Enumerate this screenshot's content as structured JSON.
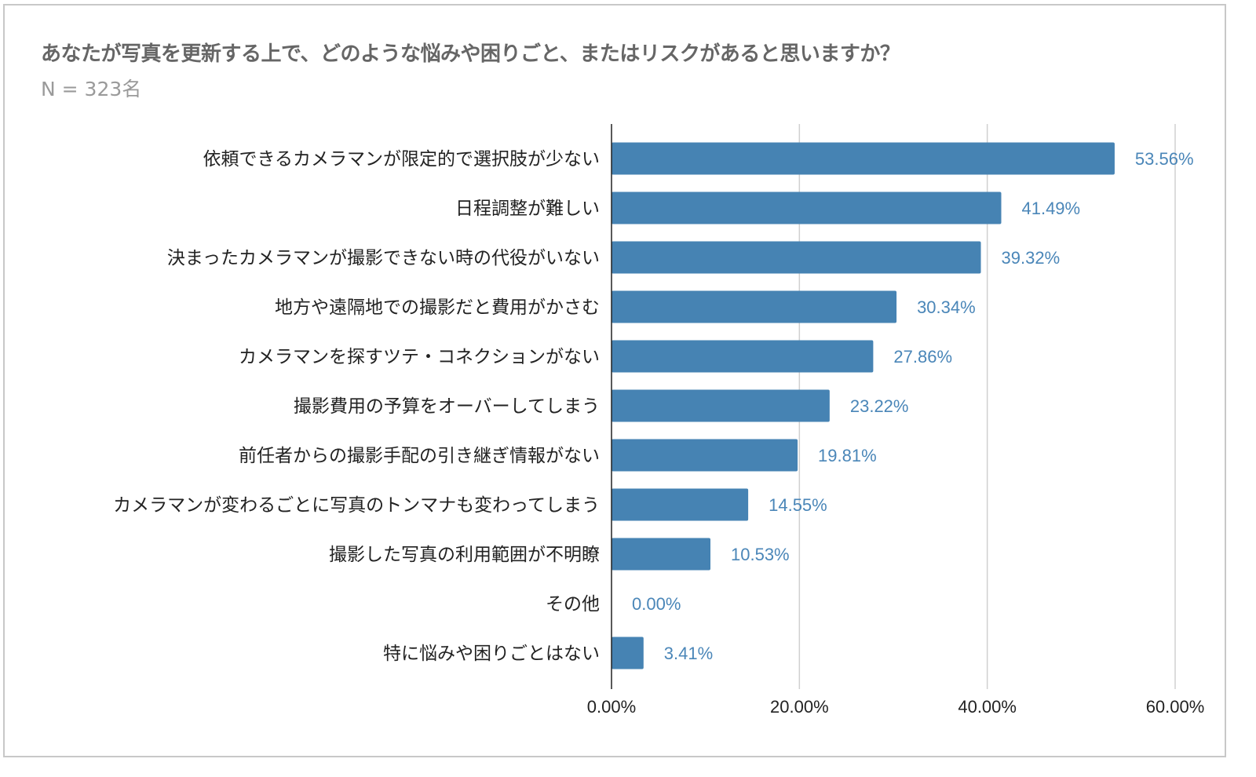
{
  "chart_data": {
    "type": "bar",
    "orientation": "horizontal",
    "title": "あなたが写真を更新する上で、どのような悩みや困りごと、またはリスクがあると思いますか？",
    "subtitle": "N = 323名",
    "categories": [
      "依頼できるカメラマンが限定的で選択肢が少ない",
      "日程調整が難しい",
      "決まったカメラマンが撮影できない時の代役がいない",
      "地方や遠隔地での撮影だと費用がかさむ",
      "カメラマンを探すツテ・コネクションがない",
      "撮影費用の予算をオーバーしてしまう",
      "前任者からの撮影手配の引き継ぎ情報がない",
      "カメラマンが変わるごとに写真のトンマナも変わってしまう",
      "撮影した写真の利用範囲が不明瞭",
      "その他",
      "特に悩みや困りごとはない"
    ],
    "values": [
      53.56,
      41.49,
      39.32,
      30.34,
      27.86,
      23.22,
      19.81,
      14.55,
      10.53,
      0.0,
      3.41
    ],
    "data_labels": [
      "53.56%",
      "41.49%",
      "39.32%",
      "30.34%",
      "27.86%",
      "23.22%",
      "19.81%",
      "14.55%",
      "10.53%",
      "0.00%",
      "3.41%"
    ],
    "xlim": [
      0,
      60
    ],
    "xticks": [
      "0.00%",
      "20.00%",
      "40.00%",
      "60.00%"
    ],
    "xtick_values": [
      0,
      20,
      40,
      60
    ],
    "grid": true,
    "xlabel": "",
    "ylabel": "",
    "colors": {
      "bar": "#4683b3",
      "data_label": "#4a86b8",
      "tick_label": "#222222",
      "grid": "#d0d0d0"
    }
  }
}
